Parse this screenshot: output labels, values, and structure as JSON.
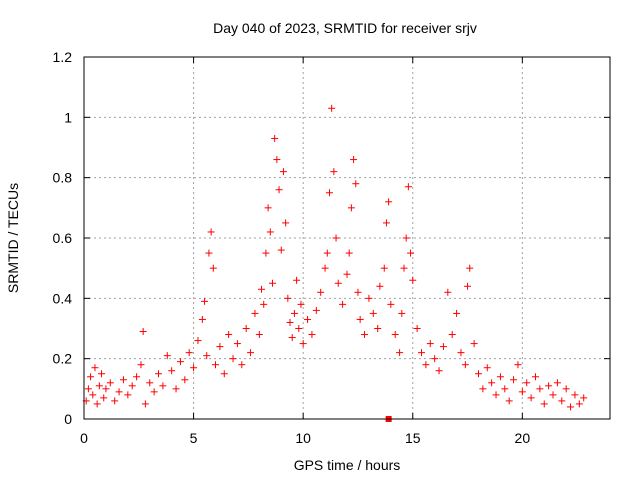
{
  "chart_data": {
    "type": "scatter",
    "title": "Day 040 of 2023, SRMTID for receiver srjv",
    "xlabel": "GPS time / hours",
    "ylabel": "SRMTID / TECUs",
    "xlim": [
      0,
      24
    ],
    "ylim": [
      0,
      1.2
    ],
    "xticks": [
      0,
      5,
      10,
      15,
      20
    ],
    "xtick_labels": [
      "0",
      "5",
      "10",
      "15",
      "20"
    ],
    "yticks": [
      0,
      0.2,
      0.4,
      0.6,
      0.8,
      1.0,
      1.2
    ],
    "ytick_labels": [
      "0",
      "0.2",
      "0.4",
      "0.6",
      "0.8",
      "1",
      "1.2"
    ],
    "grid": true,
    "marker": "+",
    "color": "#ff0000",
    "series": [
      {
        "name": "srjv",
        "points": [
          [
            0.1,
            0.06
          ],
          [
            0.2,
            0.1
          ],
          [
            0.3,
            0.14
          ],
          [
            0.4,
            0.08
          ],
          [
            0.5,
            0.17
          ],
          [
            0.6,
            0.05
          ],
          [
            0.7,
            0.11
          ],
          [
            0.8,
            0.15
          ],
          [
            0.9,
            0.07
          ],
          [
            1.0,
            0.1
          ],
          [
            1.2,
            0.12
          ],
          [
            1.4,
            0.06
          ],
          [
            1.6,
            0.09
          ],
          [
            1.8,
            0.13
          ],
          [
            2.0,
            0.08
          ],
          [
            2.2,
            0.11
          ],
          [
            2.4,
            0.14
          ],
          [
            2.6,
            0.18
          ],
          [
            2.7,
            0.29
          ],
          [
            2.8,
            0.05
          ],
          [
            3.0,
            0.12
          ],
          [
            3.2,
            0.09
          ],
          [
            3.4,
            0.15
          ],
          [
            3.6,
            0.11
          ],
          [
            3.8,
            0.21
          ],
          [
            4.0,
            0.16
          ],
          [
            4.2,
            0.1
          ],
          [
            4.4,
            0.19
          ],
          [
            4.6,
            0.13
          ],
          [
            4.8,
            0.22
          ],
          [
            5.0,
            0.17
          ],
          [
            5.2,
            0.26
          ],
          [
            5.4,
            0.33
          ],
          [
            5.5,
            0.39
          ],
          [
            5.6,
            0.21
          ],
          [
            5.7,
            0.55
          ],
          [
            5.8,
            0.62
          ],
          [
            5.9,
            0.5
          ],
          [
            6.0,
            0.18
          ],
          [
            6.2,
            0.24
          ],
          [
            6.4,
            0.15
          ],
          [
            6.6,
            0.28
          ],
          [
            6.8,
            0.2
          ],
          [
            7.0,
            0.25
          ],
          [
            7.2,
            0.18
          ],
          [
            7.4,
            0.3
          ],
          [
            7.6,
            0.22
          ],
          [
            7.8,
            0.35
          ],
          [
            8.0,
            0.28
          ],
          [
            8.1,
            0.43
          ],
          [
            8.2,
            0.38
          ],
          [
            8.3,
            0.55
          ],
          [
            8.4,
            0.7
          ],
          [
            8.5,
            0.62
          ],
          [
            8.6,
            0.45
          ],
          [
            8.7,
            0.93
          ],
          [
            8.8,
            0.86
          ],
          [
            8.9,
            0.76
          ],
          [
            9.0,
            0.56
          ],
          [
            9.1,
            0.82
          ],
          [
            9.2,
            0.65
          ],
          [
            9.3,
            0.4
          ],
          [
            9.4,
            0.32
          ],
          [
            9.5,
            0.27
          ],
          [
            9.6,
            0.35
          ],
          [
            9.7,
            0.46
          ],
          [
            9.8,
            0.3
          ],
          [
            9.9,
            0.38
          ],
          [
            10.0,
            0.25
          ],
          [
            10.2,
            0.33
          ],
          [
            10.4,
            0.28
          ],
          [
            10.6,
            0.36
          ],
          [
            10.8,
            0.42
          ],
          [
            11.0,
            0.5
          ],
          [
            11.1,
            0.55
          ],
          [
            11.2,
            0.75
          ],
          [
            11.3,
            1.03
          ],
          [
            11.4,
            0.82
          ],
          [
            11.5,
            0.6
          ],
          [
            11.6,
            0.45
          ],
          [
            11.8,
            0.38
          ],
          [
            12.0,
            0.48
          ],
          [
            12.1,
            0.55
          ],
          [
            12.2,
            0.7
          ],
          [
            12.3,
            0.86
          ],
          [
            12.4,
            0.78
          ],
          [
            12.5,
            0.42
          ],
          [
            12.6,
            0.33
          ],
          [
            12.8,
            0.28
          ],
          [
            13.0,
            0.4
          ],
          [
            13.2,
            0.35
          ],
          [
            13.4,
            0.3
          ],
          [
            13.5,
            0.44
          ],
          [
            13.7,
            0.5
          ],
          [
            13.8,
            0.65
          ],
          [
            13.9,
            0.72
          ],
          [
            14.0,
            0.38
          ],
          [
            14.2,
            0.28
          ],
          [
            14.4,
            0.22
          ],
          [
            14.5,
            0.35
          ],
          [
            14.6,
            0.5
          ],
          [
            14.7,
            0.6
          ],
          [
            14.8,
            0.77
          ],
          [
            14.9,
            0.55
          ],
          [
            15.0,
            0.46
          ],
          [
            15.2,
            0.3
          ],
          [
            15.4,
            0.22
          ],
          [
            15.6,
            0.18
          ],
          [
            15.8,
            0.25
          ],
          [
            16.0,
            0.2
          ],
          [
            16.2,
            0.16
          ],
          [
            16.4,
            0.24
          ],
          [
            16.6,
            0.42
          ],
          [
            16.8,
            0.28
          ],
          [
            17.0,
            0.35
          ],
          [
            17.2,
            0.22
          ],
          [
            17.4,
            0.18
          ],
          [
            17.5,
            0.44
          ],
          [
            17.6,
            0.5
          ],
          [
            17.8,
            0.25
          ],
          [
            18.0,
            0.15
          ],
          [
            18.2,
            0.1
          ],
          [
            18.4,
            0.17
          ],
          [
            18.6,
            0.12
          ],
          [
            18.8,
            0.08
          ],
          [
            19.0,
            0.14
          ],
          [
            19.2,
            0.1
          ],
          [
            19.4,
            0.06
          ],
          [
            19.6,
            0.13
          ],
          [
            19.8,
            0.18
          ],
          [
            20.0,
            0.09
          ],
          [
            20.2,
            0.12
          ],
          [
            20.4,
            0.07
          ],
          [
            20.6,
            0.14
          ],
          [
            20.8,
            0.1
          ],
          [
            21.0,
            0.05
          ],
          [
            21.2,
            0.11
          ],
          [
            21.4,
            0.08
          ],
          [
            21.6,
            0.12
          ],
          [
            21.8,
            0.06
          ],
          [
            22.0,
            0.1
          ],
          [
            22.2,
            0.04
          ],
          [
            22.4,
            0.08
          ],
          [
            22.6,
            0.05
          ],
          [
            22.8,
            0.07
          ]
        ]
      }
    ],
    "outlier_square": [
      13.9,
      0.0
    ]
  }
}
